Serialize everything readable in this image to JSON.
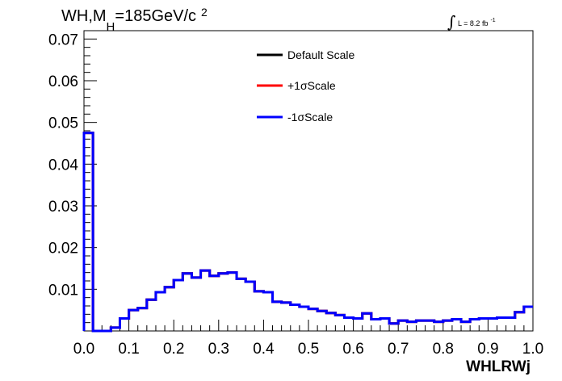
{
  "chart_data": {
    "type": "line",
    "title": {
      "prefix": "WH,M",
      "subscript": "H",
      "suffix": "=185GeV/c",
      "superscript": "2"
    },
    "lumi": {
      "integral_symbol": "∫",
      "text": "L = 8.2 fb",
      "superscript": "-1"
    },
    "xlabel": "WHLRWj",
    "ylabel": "",
    "xlim": [
      0.0,
      1.0
    ],
    "ylim": [
      0.0,
      0.072
    ],
    "x_ticks": [
      "0.0",
      "0.1",
      "0.2",
      "0.3",
      "0.4",
      "0.5",
      "0.6",
      "0.7",
      "0.8",
      "0.9",
      "1.0"
    ],
    "y_ticks": [
      "0.01",
      "0.02",
      "0.03",
      "0.04",
      "0.05",
      "0.06",
      "0.07"
    ],
    "grid": false,
    "legend_position": "top-center",
    "bin_edges_start": 0.0,
    "bin_width": 0.02,
    "series": [
      {
        "name": "Default Scale",
        "color": "#000000",
        "values": [
          0.0475,
          0.0,
          0.0,
          0.0008,
          0.003,
          0.005,
          0.0055,
          0.0075,
          0.0093,
          0.0105,
          0.0122,
          0.0138,
          0.0128,
          0.0145,
          0.0132,
          0.0138,
          0.014,
          0.0125,
          0.0118,
          0.0095,
          0.0093,
          0.007,
          0.0068,
          0.0063,
          0.0058,
          0.0053,
          0.0048,
          0.0043,
          0.0038,
          0.0032,
          0.003,
          0.0042,
          0.0028,
          0.003,
          0.0018,
          0.0025,
          0.0022,
          0.0025,
          0.0025,
          0.0022,
          0.0025,
          0.0028,
          0.0022,
          0.0028,
          0.003,
          0.003,
          0.0032,
          0.0032,
          0.0045,
          0.0058
        ]
      },
      {
        "name": "+1σScale",
        "color": "#ff0000",
        "values": [
          0.0475,
          0.0,
          0.0,
          0.0008,
          0.003,
          0.005,
          0.0055,
          0.0075,
          0.0093,
          0.0105,
          0.0122,
          0.0138,
          0.0128,
          0.0145,
          0.0132,
          0.0138,
          0.014,
          0.0125,
          0.0118,
          0.0095,
          0.0093,
          0.007,
          0.0068,
          0.0063,
          0.0058,
          0.0053,
          0.0048,
          0.0043,
          0.0038,
          0.0032,
          0.003,
          0.0042,
          0.0028,
          0.003,
          0.0018,
          0.0025,
          0.0022,
          0.0025,
          0.0025,
          0.0022,
          0.0025,
          0.0028,
          0.0022,
          0.0028,
          0.003,
          0.003,
          0.0032,
          0.0032,
          0.0045,
          0.0058
        ]
      },
      {
        "name": "-1σScale",
        "color": "#0000ff",
        "values": [
          0.0475,
          0.0,
          0.0,
          0.0008,
          0.003,
          0.005,
          0.0055,
          0.0075,
          0.0093,
          0.0105,
          0.0122,
          0.0138,
          0.0128,
          0.0145,
          0.0132,
          0.0138,
          0.014,
          0.0125,
          0.0118,
          0.0095,
          0.0093,
          0.007,
          0.0068,
          0.0063,
          0.0058,
          0.0053,
          0.0048,
          0.0043,
          0.0038,
          0.0032,
          0.003,
          0.0042,
          0.0028,
          0.003,
          0.0018,
          0.0025,
          0.0022,
          0.0025,
          0.0025,
          0.0022,
          0.0025,
          0.0028,
          0.0022,
          0.0028,
          0.003,
          0.003,
          0.0032,
          0.0032,
          0.0045,
          0.0058
        ]
      }
    ]
  }
}
